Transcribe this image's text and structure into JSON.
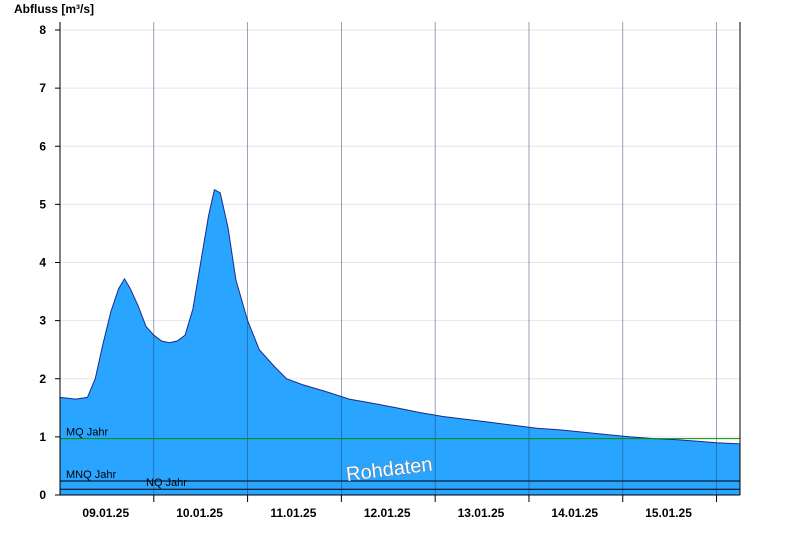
{
  "chart_data": {
    "type": "area",
    "ylabel": "Abfluss [m³/s]",
    "ylim": [
      0,
      8
    ],
    "yticks": [
      0,
      1,
      2,
      3,
      4,
      5,
      6,
      7,
      8
    ],
    "x_range": [
      "2025-01-08T12:00",
      "2025-01-15T18:00"
    ],
    "xtick_labels": [
      {
        "date": "2025-01-09",
        "label": "09.01.25"
      },
      {
        "date": "2025-01-10",
        "label": "10.01.25"
      },
      {
        "date": "2025-01-11",
        "label": "11.01.25"
      },
      {
        "date": "2025-01-12",
        "label": "12.01.25"
      },
      {
        "date": "2025-01-13",
        "label": "13.01.25"
      },
      {
        "date": "2025-01-14",
        "label": "14.01.25"
      },
      {
        "date": "2025-01-15",
        "label": "15.01.25"
      }
    ],
    "day_boundaries": [
      "2025-01-09T12:00",
      "2025-01-10T12:00",
      "2025-01-11T12:00",
      "2025-01-12T12:00",
      "2025-01-13T12:00",
      "2025-01-14T12:00",
      "2025-01-15T12:00"
    ],
    "grid": true,
    "series": [
      {
        "color": "#2aa5ff",
        "line_color": "#1a2a8a",
        "points": [
          [
            "2025-01-08T12:00",
            1.68
          ],
          [
            "2025-01-08T16:00",
            1.65
          ],
          [
            "2025-01-08T19:00",
            1.68
          ],
          [
            "2025-01-08T21:00",
            2.0
          ],
          [
            "2025-01-08T23:00",
            2.6
          ],
          [
            "2025-01-09T01:00",
            3.15
          ],
          [
            "2025-01-09T03:00",
            3.55
          ],
          [
            "2025-01-09T04:30",
            3.72
          ],
          [
            "2025-01-09T06:00",
            3.55
          ],
          [
            "2025-01-09T08:00",
            3.25
          ],
          [
            "2025-01-09T10:00",
            2.9
          ],
          [
            "2025-01-09T12:00",
            2.75
          ],
          [
            "2025-01-09T14:00",
            2.65
          ],
          [
            "2025-01-09T16:00",
            2.62
          ],
          [
            "2025-01-09T18:00",
            2.65
          ],
          [
            "2025-01-09T20:00",
            2.75
          ],
          [
            "2025-01-09T22:00",
            3.2
          ],
          [
            "2025-01-10T00:00",
            4.0
          ],
          [
            "2025-01-10T02:00",
            4.8
          ],
          [
            "2025-01-10T03:30",
            5.25
          ],
          [
            "2025-01-10T05:00",
            5.2
          ],
          [
            "2025-01-10T07:00",
            4.6
          ],
          [
            "2025-01-10T09:00",
            3.7
          ],
          [
            "2025-01-10T12:00",
            3.0
          ],
          [
            "2025-01-10T15:00",
            2.5
          ],
          [
            "2025-01-10T19:00",
            2.2
          ],
          [
            "2025-01-10T22:00",
            2.0
          ],
          [
            "2025-01-11T02:00",
            1.9
          ],
          [
            "2025-01-11T08:00",
            1.78
          ],
          [
            "2025-01-11T14:00",
            1.65
          ],
          [
            "2025-01-11T20:00",
            1.58
          ],
          [
            "2025-01-12T02:00",
            1.5
          ],
          [
            "2025-01-12T08:00",
            1.42
          ],
          [
            "2025-01-12T14:00",
            1.35
          ],
          [
            "2025-01-12T20:00",
            1.3
          ],
          [
            "2025-01-13T02:00",
            1.25
          ],
          [
            "2025-01-13T08:00",
            1.2
          ],
          [
            "2025-01-13T14:00",
            1.15
          ],
          [
            "2025-01-13T20:00",
            1.12
          ],
          [
            "2025-01-14T02:00",
            1.08
          ],
          [
            "2025-01-14T08:00",
            1.04
          ],
          [
            "2025-01-14T14:00",
            1.0
          ],
          [
            "2025-01-14T20:00",
            0.97
          ],
          [
            "2025-01-15T02:00",
            0.95
          ],
          [
            "2025-01-15T08:00",
            0.92
          ],
          [
            "2025-01-15T12:00",
            0.9
          ],
          [
            "2025-01-15T18:00",
            0.88
          ]
        ]
      }
    ],
    "reference_lines": [
      {
        "label": "MQ Jahr",
        "value": 0.97,
        "color": "#009000"
      },
      {
        "label": "MNQ Jahr",
        "value": 0.24,
        "color": "#000000"
      },
      {
        "label": "NQ Jahr",
        "value": 0.1,
        "color": "#000000"
      }
    ],
    "watermark": "Rohdaten"
  }
}
